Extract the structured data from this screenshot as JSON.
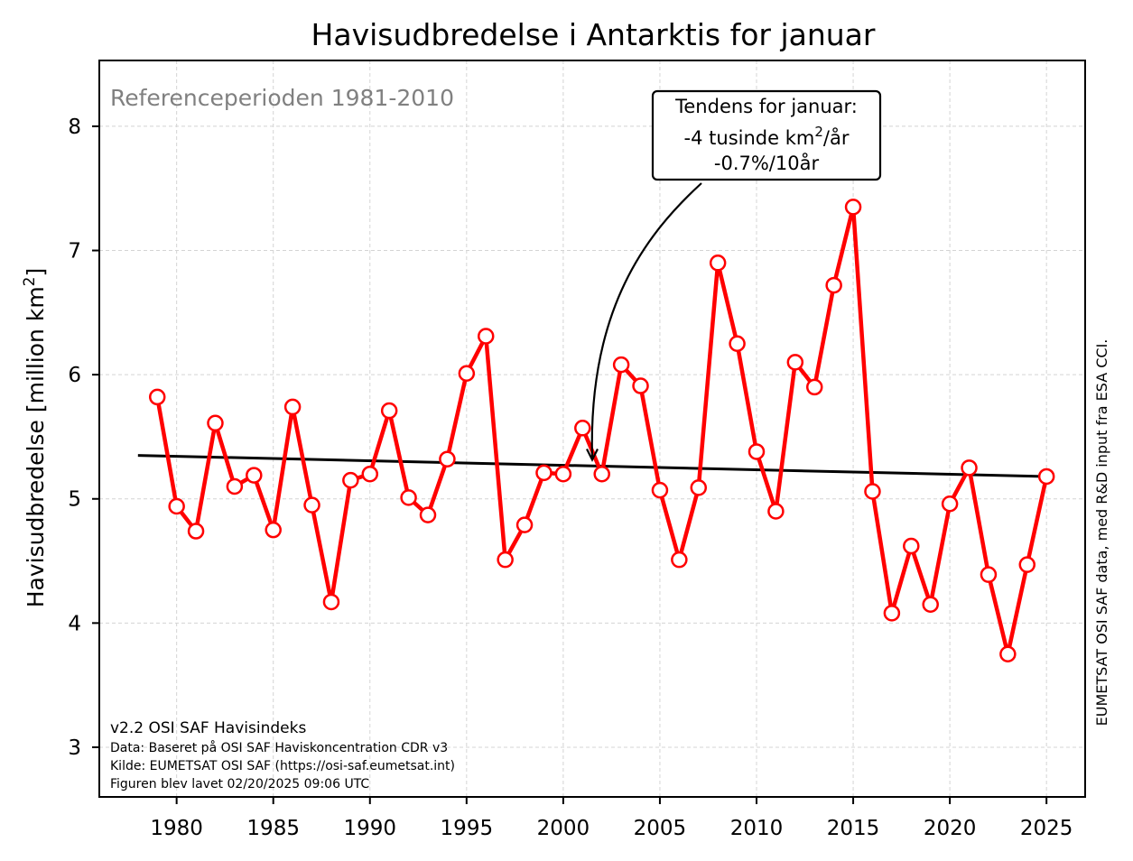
{
  "chart_data": {
    "type": "line",
    "title": "Havisudbredelse i Antarktis for januar",
    "ylabel": "Havisudbredelse [million km²]",
    "ylabel_main": "Havisudbredelse [million km",
    "ylabel_sup": "2",
    "ylabel_end": "]",
    "xlim": [
      1976,
      2027
    ],
    "ylim": [
      2.6,
      8.53
    ],
    "xticks": [
      1980,
      1985,
      1990,
      1995,
      2000,
      2005,
      2010,
      2015,
      2020,
      2025
    ],
    "yticks": [
      3,
      4,
      5,
      6,
      7,
      8
    ],
    "grid": true,
    "series": [
      {
        "kind": "extent",
        "color": "#ff0000",
        "x": [
          1979,
          1980,
          1981,
          1982,
          1983,
          1984,
          1985,
          1986,
          1987,
          1988,
          1989,
          1990,
          1991,
          1992,
          1993,
          1994,
          1995,
          1996,
          1997,
          1998,
          1999,
          2000,
          2001,
          2002,
          2003,
          2004,
          2005,
          2006,
          2007,
          2008,
          2009,
          2010,
          2011,
          2012,
          2013,
          2014,
          2015,
          2016,
          2017,
          2018,
          2019,
          2020,
          2021,
          2022,
          2023,
          2024,
          2025
        ],
        "values": [
          5.82,
          4.94,
          4.74,
          5.61,
          5.1,
          5.19,
          4.75,
          5.74,
          4.95,
          4.17,
          5.15,
          5.2,
          5.71,
          5.01,
          4.87,
          5.32,
          6.01,
          6.31,
          4.51,
          4.79,
          5.21,
          5.2,
          5.57,
          5.2,
          6.08,
          5.91,
          5.07,
          4.51,
          5.09,
          6.9,
          6.25,
          5.38,
          4.9,
          6.1,
          5.9,
          6.72,
          7.35,
          5.06,
          4.08,
          4.62,
          4.15,
          4.96,
          5.25,
          4.39,
          3.75,
          4.47,
          5.18
        ]
      },
      {
        "kind": "trend",
        "color": "#000000",
        "x": [
          1978,
          2025
        ],
        "values": [
          5.35,
          5.18
        ]
      }
    ],
    "annotation": {
      "line1": "Tendens for januar:",
      "line2_pre": "-4 tusinde km",
      "line2_sup": "2",
      "line2_post": "/år",
      "line3": "-0.7%/10år",
      "arrow_target_x": 2001.5,
      "arrow_target_y": 5.3
    },
    "reference_note": "Referenceperioden 1981-2010",
    "footnotes": [
      "v2.2 OSI SAF Havisindeks",
      "Data: Baseret på OSI SAF Haviskoncentration CDR v3",
      "Kilde: EUMETSAT OSI SAF (https://osi-saf.eumetsat.int)",
      "Figuren blev lavet 02/20/2025 09:06 UTC"
    ],
    "credit": "EUMETSAT OSI SAF data, med R&D input fra ESA CCI."
  }
}
